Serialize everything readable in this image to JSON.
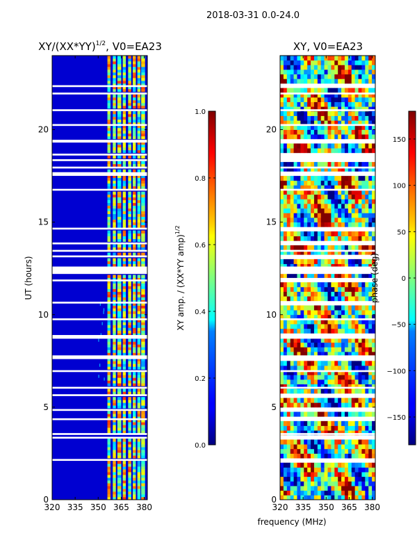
{
  "figure": {
    "suptitle": "2018-03-31 0.0-24.0",
    "xlabel_shared": "frequency (MHz)"
  },
  "chart_data": [
    {
      "type": "heatmap",
      "title": "XY/(XX*YY)",
      "title_superscript": "1/2",
      "title_suffix": ", V0=EA23",
      "xlabel": "",
      "ylabel": "UT (hours)",
      "xlim": [
        320,
        382
      ],
      "ylim": [
        0,
        24
      ],
      "xticks": [
        320,
        335,
        350,
        365,
        380
      ],
      "yticks": [
        0,
        5,
        10,
        15,
        20
      ],
      "colorbar": {
        "label": "XY amp. / (XX*YY amp)",
        "label_superscript": "1/2",
        "range": [
          0.0,
          1.0
        ],
        "ticks": [
          "0.0",
          "0.2",
          "0.4",
          "0.6",
          "0.8",
          "1.0"
        ],
        "colormap": "jet"
      },
      "gap_bands_hours": [
        [
          22.3,
          22.4
        ],
        [
          21.9,
          22.0
        ],
        [
          21.0,
          21.1
        ],
        [
          20.2,
          20.3
        ],
        [
          19.3,
          19.45
        ],
        [
          18.6,
          18.7
        ],
        [
          18.3,
          18.4
        ],
        [
          17.9,
          18.0
        ],
        [
          17.5,
          17.7
        ],
        [
          16.7,
          16.8
        ],
        [
          14.6,
          14.7
        ],
        [
          13.8,
          13.9
        ],
        [
          13.4,
          13.5
        ],
        [
          13.1,
          13.2
        ],
        [
          12.2,
          12.6
        ],
        [
          11.8,
          11.9
        ],
        [
          10.6,
          10.7
        ],
        [
          9.7,
          9.8
        ],
        [
          8.7,
          8.9
        ],
        [
          7.6,
          7.8
        ],
        [
          6.9,
          7.0
        ],
        [
          6.0,
          6.1
        ],
        [
          5.6,
          5.7
        ],
        [
          4.8,
          4.9
        ],
        [
          4.3,
          4.4
        ],
        [
          3.5,
          3.6
        ],
        [
          3.3,
          3.4
        ],
        [
          2.1,
          2.2
        ]
      ],
      "bright_channels_mhz": [
        [
          356,
          358
        ],
        [
          359.5,
          361.5
        ],
        [
          362.5,
          365
        ],
        [
          366,
          368
        ],
        [
          369.5,
          371.5
        ],
        [
          372.5,
          374.5
        ],
        [
          375.5,
          377.5
        ],
        [
          378,
          380.5
        ]
      ],
      "bright_channel_typical_value": 0.55,
      "background_value": 0.08
    },
    {
      "type": "heatmap",
      "title": "XY, V0=EA23",
      "xlabel": "frequency (MHz)",
      "ylabel": "",
      "xlim": [
        320,
        382
      ],
      "ylim": [
        0,
        24
      ],
      "xticks": [
        320,
        335,
        350,
        365,
        380
      ],
      "yticks": [
        0,
        5,
        10,
        15,
        20
      ],
      "colorbar": {
        "label": "phase (deg)",
        "range": [
          -180,
          180
        ],
        "ticks": [
          "-150",
          "-100",
          "-50",
          "0",
          "50",
          "100",
          "150"
        ],
        "colormap": "jet"
      },
      "gap_bands_hours": [
        [
          22.3,
          22.4
        ],
        [
          21.9,
          22.0
        ],
        [
          21.0,
          21.1
        ],
        [
          20.2,
          20.3
        ],
        [
          19.3,
          19.45
        ],
        [
          18.6,
          18.7
        ],
        [
          18.3,
          18.4
        ],
        [
          17.9,
          18.0
        ],
        [
          17.5,
          17.7
        ],
        [
          16.7,
          16.8
        ],
        [
          14.6,
          14.7
        ],
        [
          13.8,
          13.9
        ],
        [
          13.4,
          13.5
        ],
        [
          13.1,
          13.2
        ],
        [
          12.2,
          12.6
        ],
        [
          11.8,
          11.9
        ],
        [
          10.6,
          10.7
        ],
        [
          9.7,
          9.8
        ],
        [
          8.7,
          8.9
        ],
        [
          7.6,
          7.8
        ],
        [
          6.9,
          7.0
        ],
        [
          6.0,
          6.1
        ],
        [
          5.6,
          5.7
        ],
        [
          4.8,
          4.9
        ],
        [
          4.3,
          4.4
        ],
        [
          3.5,
          3.6
        ],
        [
          3.3,
          3.4
        ],
        [
          2.1,
          2.2
        ]
      ]
    }
  ],
  "colors": {
    "jet_dark_blue": "#00007f",
    "jet_blue": "#0000ff",
    "jet_cyan": "#00ffff",
    "jet_green": "#7fff7f",
    "jet_yellow": "#ffff00",
    "jet_red": "#ff0000",
    "jet_dark_red": "#7f0000",
    "gap": "#ffffff",
    "axis": "#000000"
  }
}
